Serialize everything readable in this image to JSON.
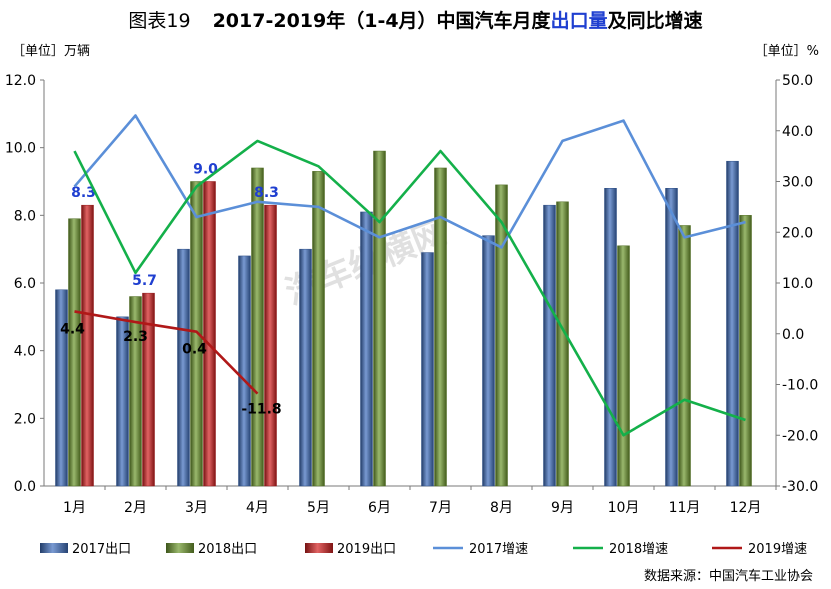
{
  "title": {
    "num": "图表19",
    "year_range": "2017-2019年（1-4月）中国汽车月度",
    "highlight": "出口量",
    "suffix": "及同比增速"
  },
  "unit_left": "［单位］万辆",
  "unit_right": "［单位］%",
  "source": "数据来源：中国汽车工业协会",
  "watermark": "汽车纵横网",
  "colors": {
    "bar2017": "#3f6fbf",
    "bar2018": "#6f9a2f",
    "bar2019": "#d42020",
    "line2017": "#5b8fd8",
    "line2018": "#14b04a",
    "line2019": "#b01818",
    "label_blue": "#1f3fd0"
  },
  "chart_data": {
    "type": "bar",
    "categories": [
      "1月",
      "2月",
      "3月",
      "4月",
      "5月",
      "6月",
      "7月",
      "8月",
      "9月",
      "10月",
      "11月",
      "12月"
    ],
    "y_left": {
      "min": 0,
      "max": 12,
      "step": 2,
      "ticks": [
        "0.0",
        "2.0",
        "4.0",
        "6.0",
        "8.0",
        "10.0",
        "12.0"
      ]
    },
    "y_right": {
      "min": -30,
      "max": 50,
      "step": 10,
      "ticks": [
        "-30.0",
        "-20.0",
        "-10.0",
        "0.0",
        "10.0",
        "20.0",
        "30.0",
        "40.0",
        "50.0"
      ]
    },
    "bars": [
      {
        "name": "2017出口",
        "color": "#3f6fbf",
        "values": [
          5.8,
          5.0,
          7.0,
          6.8,
          7.0,
          8.1,
          6.9,
          7.4,
          8.3,
          8.8,
          8.8,
          9.6
        ]
      },
      {
        "name": "2018出口",
        "color": "#6f9a2f",
        "values": [
          7.9,
          5.6,
          9.0,
          9.4,
          9.3,
          9.9,
          9.4,
          8.9,
          8.4,
          7.1,
          7.7,
          8.0
        ]
      },
      {
        "name": "2019出口",
        "color": "#d42020",
        "values": [
          8.3,
          5.7,
          9.0,
          8.3
        ],
        "labels": [
          "8.3",
          "5.7",
          "9.0",
          "8.3"
        ]
      }
    ],
    "lines": [
      {
        "name": "2017增速",
        "color": "#5b8fd8",
        "values": [
          29,
          43,
          23,
          26,
          25,
          19,
          23,
          17,
          38,
          42,
          19,
          22
        ]
      },
      {
        "name": "2018增速",
        "color": "#14b04a",
        "values": [
          36,
          12,
          29,
          38,
          33,
          22,
          36,
          22,
          1,
          -20,
          -13,
          -17
        ]
      },
      {
        "name": "2019增速",
        "color": "#b01818",
        "values": [
          4.4,
          2.3,
          0.4,
          -11.8
        ],
        "labels": [
          "4.4",
          "2.3",
          "0.4",
          "-11.8"
        ]
      }
    ],
    "legend": [
      "2017出口",
      "2018出口",
      "2019出口",
      "2017增速",
      "2018增速",
      "2019增速"
    ],
    "grid": false,
    "legend_position": "bottom"
  }
}
